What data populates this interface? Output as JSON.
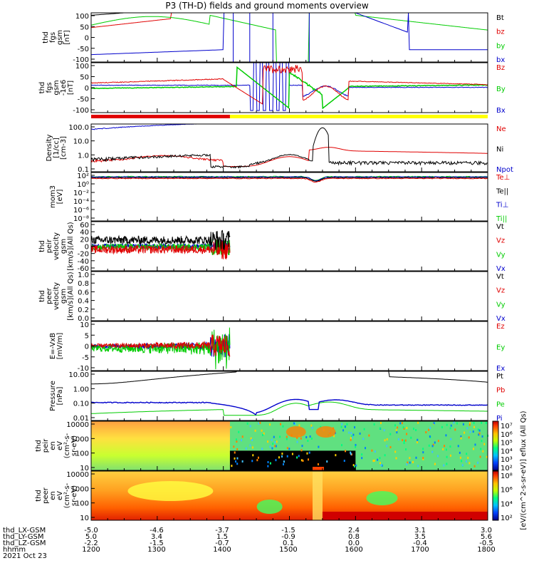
{
  "title": "P3 (TH-D) fields and ground moments overview",
  "colors": {
    "black": "#000000",
    "red": "#e00000",
    "green": "#00cc00",
    "blue": "#0000cc",
    "yellow": "#ffff00",
    "pink": "#ff8888"
  },
  "panels": [
    {
      "id": "fgs",
      "ylabel": [
        "thd",
        "fgs",
        "gsm",
        "[nT]"
      ],
      "ticks": [
        "100",
        "50",
        "0",
        "-50",
        "-100"
      ],
      "legend": [
        {
          "t": "Bt",
          "c": "black"
        },
        {
          "t": "bz",
          "c": "red"
        },
        {
          "t": "by",
          "c": "green"
        },
        {
          "t": "bx",
          "c": "blue"
        }
      ]
    },
    {
      "id": "fgs2",
      "ylabel": [
        "thd",
        "fgs",
        "gsm",
        "-1e6",
        "[nT]"
      ],
      "ticks": [
        "100",
        "50",
        "0",
        "-50",
        "-100"
      ],
      "legend": [
        {
          "t": "Bz",
          "c": "red"
        },
        {
          "t": "By",
          "c": "green"
        },
        {
          "t": "Bx",
          "c": "blue"
        }
      ]
    },
    {
      "id": "den",
      "ylabel": [
        "Density",
        "[1/cc]",
        "[cm-3]"
      ],
      "ticks": [
        "100.0",
        "10.0",
        "1.0",
        "0.1"
      ],
      "legend": [
        {
          "t": "Ne",
          "c": "red"
        },
        {
          "t": "Ni",
          "c": "black"
        },
        {
          "t": "Npot",
          "c": "blue"
        }
      ]
    },
    {
      "id": "temp",
      "ylabel": [
        "mom3",
        "[eV]"
      ],
      "ticks": [
        "10²",
        "10⁰",
        "10⁻²",
        "10⁻⁴",
        "10⁻⁶",
        "10⁻⁸"
      ],
      "legend": [
        {
          "t": "Te⊥",
          "c": "red"
        },
        {
          "t": "Te||",
          "c": "black"
        },
        {
          "t": "Ti⊥",
          "c": "blue"
        },
        {
          "t": "Ti||",
          "c": "green"
        }
      ]
    },
    {
      "id": "vi",
      "ylabel": [
        "thd",
        "peir",
        "velocity",
        "gsm",
        "[km/s](All Qs)"
      ],
      "ticks": [
        "60",
        "40",
        "20",
        "0",
        "-20",
        "-40",
        "-60"
      ],
      "legend": [
        {
          "t": "Vt",
          "c": "black"
        },
        {
          "t": "Vz",
          "c": "red"
        },
        {
          "t": "Vy",
          "c": "green"
        },
        {
          "t": "Vx",
          "c": "blue"
        }
      ]
    },
    {
      "id": "ve",
      "ylabel": [
        "thd",
        "peer",
        "velocity",
        "gsm",
        "[km/s](All Qs)"
      ],
      "ticks": [
        "1.0",
        "0.8",
        "0.6",
        "0.4",
        "0.2",
        "0.0"
      ],
      "legend": [
        {
          "t": "Vt",
          "c": "black"
        },
        {
          "t": "Vz",
          "c": "red"
        },
        {
          "t": "Vy",
          "c": "green"
        },
        {
          "t": "Vx",
          "c": "blue"
        }
      ]
    },
    {
      "id": "ef",
      "ylabel": [
        "E=-VxB",
        "[mV/m]"
      ],
      "ticks": [
        "10",
        "5",
        "0",
        "-5",
        "-10"
      ],
      "legend": [
        {
          "t": "Ez",
          "c": "red"
        },
        {
          "t": "Ey",
          "c": "green"
        },
        {
          "t": "Ex",
          "c": "blue"
        }
      ]
    },
    {
      "id": "pres",
      "ylabel": [
        "Pressure",
        "[nPa]"
      ],
      "ticks": [
        "10.00",
        "1.00",
        "0.10",
        "0.01"
      ],
      "legend": [
        {
          "t": "Pt",
          "c": "black"
        },
        {
          "t": "Pb",
          "c": "red"
        },
        {
          "t": "Pe",
          "c": "green"
        },
        {
          "t": "Pi",
          "c": "blue"
        }
      ]
    },
    {
      "id": "ispec",
      "ylabel": [
        "thd",
        "peir",
        "en",
        "eV",
        "(cm²-s-",
        "sr-eV)"
      ],
      "ticks": [
        "10000",
        "1000",
        "100",
        "10"
      ],
      "legend": []
    },
    {
      "id": "espec",
      "ylabel": [
        "thd",
        "peer",
        "en",
        "eV",
        "(cm²-s-",
        "sr-eV)"
      ],
      "ticks": [
        "10000",
        "1000",
        "100",
        "10"
      ],
      "legend": []
    }
  ],
  "colorbar": {
    "ion_ticks": [
      "10⁷",
      "10⁶",
      "10⁵",
      "10⁴",
      "10³",
      "10²"
    ],
    "ele_ticks": [
      "10⁸",
      "10⁶",
      "10⁴",
      "10²"
    ],
    "label": "[eV/(cm^2-s-sr-eV)] eflux (All Qs)"
  },
  "footer": {
    "rows": [
      {
        "label": "thd_LX-GSM",
        "values": [
          "-5.0",
          "-4.6",
          "-3.7",
          "-1.5",
          "2.4",
          "3.1",
          "3.0"
        ]
      },
      {
        "label": "thd_LY-GSM",
        "values": [
          "5.0",
          "3.4",
          "1.5",
          "-0.9",
          "0.8",
          "3.5",
          "5.6"
        ]
      },
      {
        "label": "thd_LZ-GSM",
        "values": [
          "-2.2",
          "-1.5",
          "-0.7",
          "0.1",
          "0.0",
          "-0.4",
          "-0.5"
        ]
      },
      {
        "label": "hhmm",
        "values": [
          "1200",
          "1300",
          "1400",
          "1500",
          "1600",
          "1700",
          "1800"
        ]
      }
    ],
    "date": "2021 Oct 23"
  },
  "chart_data": {
    "type": "line",
    "title": "P3 (TH-D) fields and ground moments overview",
    "x_unit": "hhmm",
    "x": [
      "1200",
      "1300",
      "1400",
      "1500",
      "1600",
      "1700",
      "1800"
    ],
    "density_Ni_peak": 85,
    "pressure_Pt_range": [
      2,
      10
    ],
    "ion_velocity_range": [
      -60,
      60
    ],
    "efield_range": [
      -10,
      10
    ],
    "series": [
      {
        "name": "Bt",
        "panel": "fgs"
      },
      {
        "name": "bz",
        "panel": "fgs"
      },
      {
        "name": "by",
        "panel": "fgs"
      },
      {
        "name": "bx",
        "panel": "fgs"
      },
      {
        "name": "Ne",
        "panel": "density"
      },
      {
        "name": "Ni",
        "panel": "density"
      },
      {
        "name": "Npot",
        "panel": "density"
      },
      {
        "name": "Pt",
        "panel": "pressure"
      },
      {
        "name": "Pe",
        "panel": "pressure"
      },
      {
        "name": "Pi",
        "panel": "pressure"
      }
    ]
  }
}
